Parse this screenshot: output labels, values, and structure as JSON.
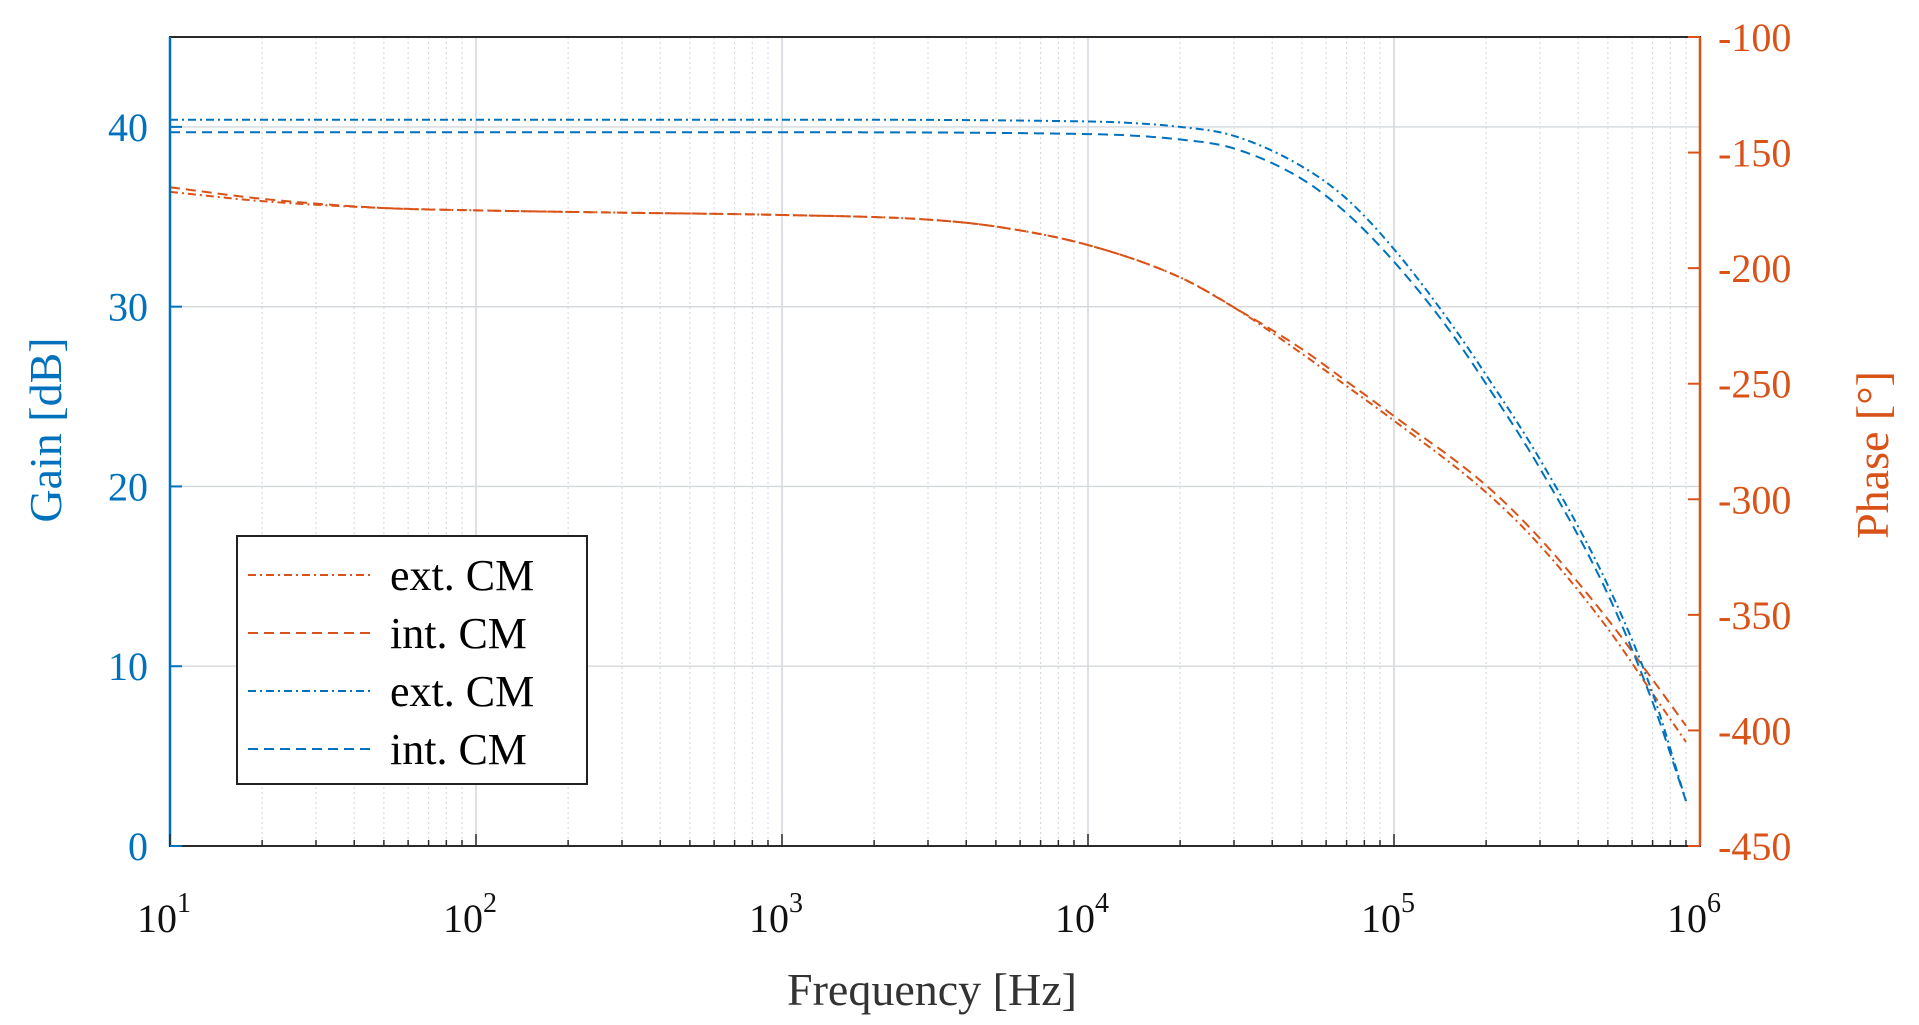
{
  "chart_data": {
    "type": "line",
    "title": "",
    "xlabel": "Frequency [Hz]",
    "ylabel_left": "Gain [dB]",
    "ylabel_right": "Phase [°]",
    "xscale": "log",
    "xlim": [
      10,
      1000000
    ],
    "ylim_left": [
      0,
      45
    ],
    "ylim_right": [
      -450,
      -100
    ],
    "x_ticks": [
      {
        "base": "10",
        "exp": "1"
      },
      {
        "base": "10",
        "exp": "2"
      },
      {
        "base": "10",
        "exp": "3"
      },
      {
        "base": "10",
        "exp": "4"
      },
      {
        "base": "10",
        "exp": "5"
      },
      {
        "base": "10",
        "exp": "6"
      }
    ],
    "y_left_ticks": [
      0,
      10,
      20,
      30,
      40
    ],
    "y_right_ticks": [
      -450,
      -400,
      -350,
      -300,
      -250,
      -200,
      -150,
      -100
    ],
    "grid": true,
    "legend_position": "bottom-left",
    "colors": {
      "gain": "#0072BD",
      "phase": "#D95319",
      "grid": "#d4d9de",
      "frame": "#2b2b2b"
    },
    "series": [
      {
        "name": "ext. CM",
        "quantity": "phase",
        "axis": "right",
        "style": "dashdot",
        "x": [
          10,
          20,
          50,
          100,
          300,
          1000,
          3000,
          5000,
          10000,
          20000,
          30000,
          50000,
          70000,
          100000,
          200000,
          300000,
          500000,
          700000,
          900000
        ],
        "values": [
          -167,
          -171,
          -174,
          -175,
          -176,
          -177,
          -179,
          -182,
          -190,
          -204,
          -217,
          -237,
          -251,
          -266,
          -297,
          -320,
          -356,
          -384,
          -405
        ]
      },
      {
        "name": "int. CM",
        "quantity": "phase",
        "axis": "right",
        "style": "dashed",
        "x": [
          10,
          20,
          50,
          100,
          300,
          1000,
          3000,
          5000,
          10000,
          20000,
          30000,
          50000,
          70000,
          100000,
          200000,
          300000,
          500000,
          700000,
          900000
        ],
        "values": [
          -165,
          -170,
          -174,
          -175,
          -176,
          -177,
          -179,
          -182,
          -190,
          -204,
          -217,
          -235,
          -249,
          -264,
          -294,
          -317,
          -352,
          -378,
          -398
        ]
      },
      {
        "name": "ext. CM",
        "quantity": "gain",
        "axis": "left",
        "style": "dashdot",
        "x": [
          10,
          100,
          1000,
          10000,
          20000,
          30000,
          50000,
          70000,
          100000,
          150000,
          200000,
          300000,
          500000,
          700000,
          900000
        ],
        "values": [
          40.4,
          40.4,
          40.4,
          40.3,
          40.0,
          39.5,
          37.8,
          36.0,
          33.2,
          29.3,
          26.2,
          21.5,
          14.5,
          8.5,
          2.5
        ]
      },
      {
        "name": "int. CM",
        "quantity": "gain",
        "axis": "left",
        "style": "dashed",
        "x": [
          10,
          100,
          1000,
          10000,
          20000,
          30000,
          50000,
          70000,
          100000,
          150000,
          200000,
          300000,
          500000,
          700000,
          900000
        ],
        "values": [
          39.7,
          39.7,
          39.7,
          39.6,
          39.3,
          38.8,
          37.1,
          35.2,
          32.5,
          28.8,
          25.7,
          21.0,
          14.0,
          8.0,
          2.5
        ]
      }
    ]
  }
}
